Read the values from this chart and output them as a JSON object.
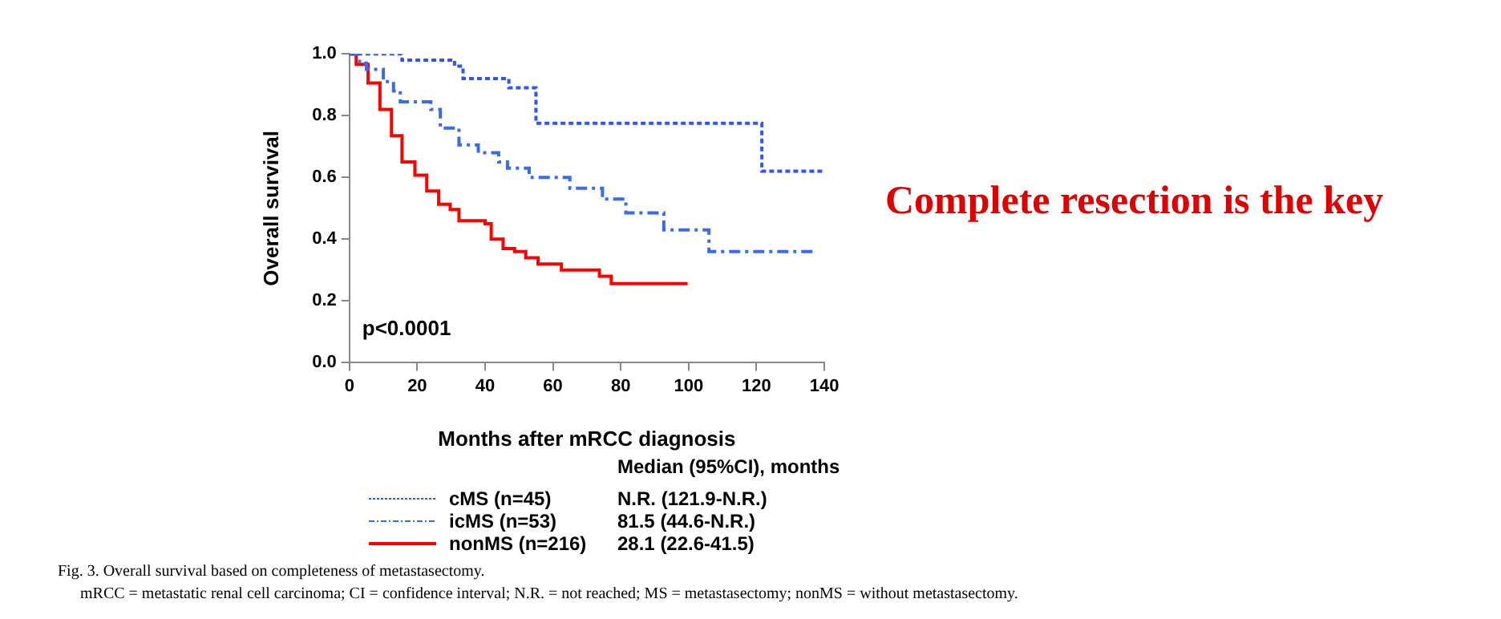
{
  "chart_data": {
    "type": "step",
    "xlabel": "Months after mRCC diagnosis",
    "ylabel": "Overall survival",
    "xlim": [
      0,
      140
    ],
    "xticks": [
      0,
      20,
      40,
      60,
      80,
      100,
      120,
      140
    ],
    "ylim": [
      0,
      1
    ],
    "yticks": [
      {
        "value": 0,
        "label": "0.0"
      },
      0.2,
      0.4,
      0.6,
      0.8,
      {
        "value": 1,
        "label": "1.0"
      }
    ],
    "grid": false,
    "legend": "bottom",
    "marker": "none",
    "series": [
      {
        "name": "cMS (n=45)",
        "color": "#2f55f5",
        "line_style": "dotted",
        "x": [
          0,
          15.5,
          31,
          33.5,
          47,
          55,
          121.6,
          140
        ],
        "values": [
          1,
          0.98,
          0.96,
          0.92,
          0.89,
          0.775,
          0.62,
          0.62
        ]
      },
      {
        "name": "icMS (n=53)",
        "color": "#3a6af0",
        "line_style": "dashed",
        "x": [
          0,
          3,
          5,
          10,
          13,
          15,
          24,
          26.8,
          32.3,
          38,
          44,
          46.6,
          53,
          65,
          74.6,
          81.5,
          92.7,
          106,
          137.6
        ],
        "values": [
          1,
          0.97,
          0.95,
          0.91,
          0.88,
          0.845,
          0.82,
          0.76,
          0.705,
          0.68,
          0.65,
          0.63,
          0.6,
          0.565,
          0.53,
          0.485,
          0.43,
          0.36,
          0.36
        ]
      },
      {
        "name": "nonMS (n=216)",
        "color": "#ff0000",
        "line_style": "solid",
        "x": [
          0,
          2,
          5.5,
          9,
          12.4,
          15.5,
          19.3,
          22.8,
          26.3,
          29.7,
          32.3,
          40,
          41.8,
          45.3,
          48.7,
          52,
          55.6,
          62.5,
          73.7,
          77.2,
          99.7
        ],
        "values": [
          1,
          0.966,
          0.906,
          0.82,
          0.735,
          0.65,
          0.607,
          0.556,
          0.513,
          0.496,
          0.46,
          0.45,
          0.4,
          0.37,
          0.36,
          0.34,
          0.32,
          0.3,
          0.28,
          0.256,
          0.256
        ]
      }
    ],
    "annotations": [
      "p<0.0001",
      "Complete resection is the key",
      "Median (95%CI), months",
      "N.R. (121.9-N.R.)",
      "81.5 (44.6-N.R.)",
      "28.1 (22.6-41.5)",
      "Fig. 3.  Overall survival based on completeness of metastasectomy.",
      "mRCC = metastatic renal cell carcinoma; CI = confidence interval; N.R. = not reached; MS = metastasectomy; nonMS = without metastasectomy."
    ]
  }
}
